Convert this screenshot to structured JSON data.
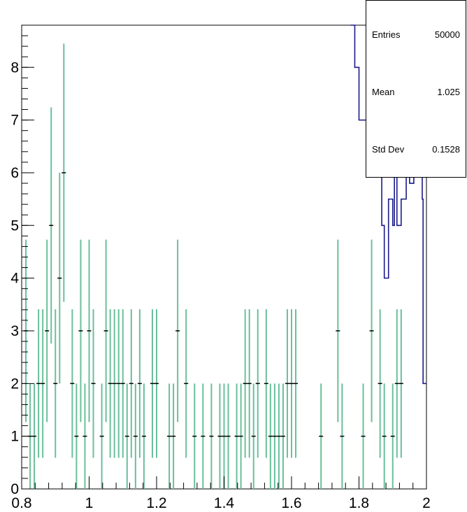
{
  "chart_data": {
    "type": "scatter",
    "title": "",
    "xlabel": "",
    "ylabel": "",
    "xlim": [
      0.8,
      2.0
    ],
    "ylim": [
      0,
      8.8
    ],
    "x_ticks": [
      "0.8",
      "1",
      "1.2",
      "1.4",
      "1.6",
      "1.8",
      "2"
    ],
    "y_ticks": [
      "0",
      "1",
      "2",
      "3",
      "4",
      "5",
      "6",
      "7",
      "8"
    ],
    "grid": false,
    "series": [
      {
        "kind": "points_with_errorbars",
        "color": "#6abf9a",
        "marker_color": "#000000",
        "x": [
          0.8125,
          0.825,
          0.8375,
          0.85,
          0.8625,
          0.875,
          0.8875,
          0.9,
          0.9125,
          0.925,
          0.95,
          0.9625,
          0.975,
          0.9875,
          1.0,
          1.0125,
          1.0375,
          1.05,
          1.0625,
          1.075,
          1.0875,
          1.1,
          1.1125,
          1.125,
          1.1375,
          1.15,
          1.1625,
          1.1875,
          1.2,
          1.2375,
          1.25,
          1.2625,
          1.2875,
          1.3125,
          1.3375,
          1.3625,
          1.3875,
          1.4,
          1.4125,
          1.4375,
          1.45,
          1.4625,
          1.475,
          1.4875,
          1.5,
          1.525,
          1.5375,
          1.55,
          1.5625,
          1.575,
          1.5875,
          1.6,
          1.6125,
          1.6875,
          1.7375,
          1.75,
          1.8125,
          1.8375,
          1.8625,
          1.875,
          1.9,
          1.9125,
          1.925
        ],
        "y": [
          3,
          1,
          1,
          2,
          2,
          3,
          5,
          2,
          4,
          6,
          2,
          1,
          3,
          1,
          3,
          2,
          1,
          3,
          2,
          2,
          2,
          2,
          1,
          2,
          1,
          2,
          1,
          2,
          2,
          1,
          1,
          3,
          2,
          1,
          1,
          1,
          1,
          1,
          1,
          1,
          1,
          2,
          2,
          1,
          2,
          2,
          1,
          1,
          1,
          1,
          2,
          2,
          2,
          1,
          3,
          1,
          1,
          3,
          2,
          1,
          1,
          2,
          2
        ],
        "err": [
          1.73,
          1,
          1,
          1.41,
          1.41,
          1.73,
          2.24,
          1.41,
          2,
          2.45,
          1.41,
          1,
          1.73,
          1,
          1.73,
          1.41,
          1,
          1.73,
          1.41,
          1.41,
          1.41,
          1.41,
          1,
          1.41,
          1,
          1.41,
          1,
          1.41,
          1.41,
          1,
          1,
          1.73,
          1.41,
          1,
          1,
          1,
          1,
          1,
          1,
          1,
          1,
          1.41,
          1.41,
          1,
          1.41,
          1.41,
          1,
          1,
          1,
          1,
          1.41,
          1.41,
          1.41,
          1,
          1.73,
          1,
          1,
          1.73,
          1.41,
          1,
          1,
          1.41,
          1.41
        ],
        "bin_half_width": 0.00625
      },
      {
        "kind": "step_histogram",
        "color": "#1a1a8c",
        "edges": [
          1.775,
          1.7875,
          1.8,
          1.8625,
          1.8675,
          1.875,
          1.8875,
          1.9,
          1.905,
          1.9125,
          1.925,
          1.94,
          1.95,
          1.9625,
          1.9875,
          1.99,
          2.0
        ],
        "values": [
          9,
          8,
          7,
          7,
          5,
          4,
          5.5,
          5,
          6,
          5,
          5.5,
          6,
          5.8,
          6.5,
          5.5,
          2
        ]
      }
    ],
    "stats": [
      {
        "label": "Entries",
        "value": "50000"
      },
      {
        "label": "Mean",
        "value": "1.025"
      },
      {
        "label": "Std Dev",
        "value": "0.1528"
      }
    ]
  }
}
